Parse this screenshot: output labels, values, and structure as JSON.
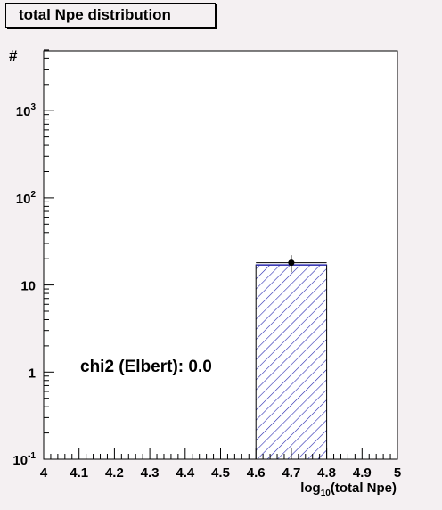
{
  "chart_data": {
    "type": "bar",
    "title": "total Npe distribution",
    "xlabel": "log10(total Npe)",
    "xlabel_base": "log",
    "xlabel_sub": "10",
    "xlabel_rest": "(total Npe)",
    "ylabel": "#",
    "xlim": [
      4,
      5
    ],
    "ylim": [
      0.1,
      5000
    ],
    "y_scale": "log",
    "x_ticks": [
      "4",
      "4.1",
      "4.2",
      "4.3",
      "4.4",
      "4.5",
      "4.6",
      "4.7",
      "4.8",
      "4.9",
      "5"
    ],
    "y_ticks": [
      {
        "value": 0.1,
        "base": "10",
        "exp": "-1"
      },
      {
        "value": 1,
        "base": "1",
        "exp": ""
      },
      {
        "value": 10,
        "base": "10",
        "exp": ""
      },
      {
        "value": 100,
        "base": "10",
        "exp": "2"
      },
      {
        "value": 1000,
        "base": "10",
        "exp": "3"
      }
    ],
    "bins": [
      {
        "x0": 4.6,
        "x1": 4.8,
        "value": 17
      }
    ],
    "data_points": [
      {
        "x": 4.7,
        "y": 18,
        "y_low": 14,
        "y_high": 22
      }
    ],
    "hist_fill_color": "#2a2ab0",
    "annotation": "chi2 (Elbert): 0.0",
    "grid": false,
    "legend": "none"
  }
}
